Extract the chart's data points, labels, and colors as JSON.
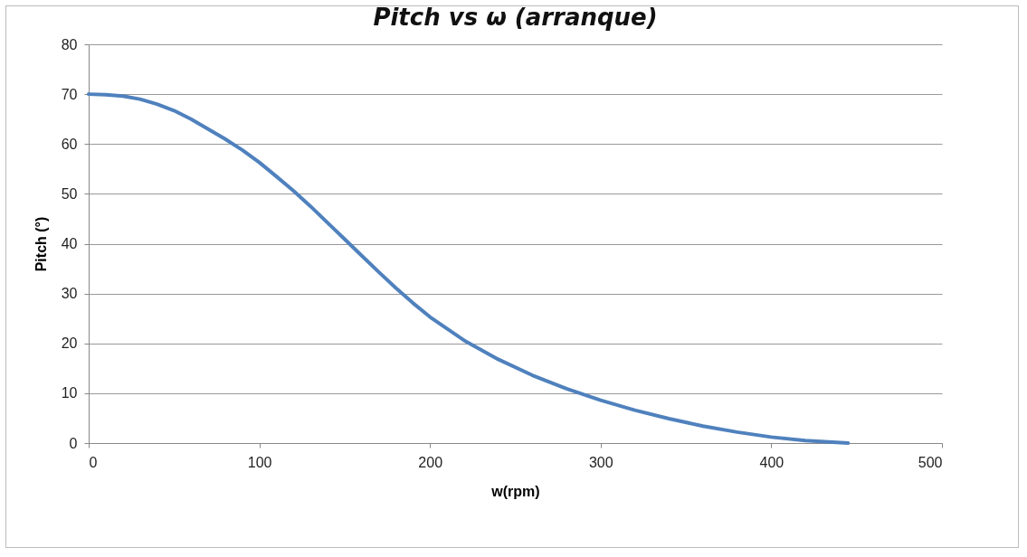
{
  "chart_data": {
    "type": "line",
    "title": "Pitch vs ω (arranque)",
    "xlabel": "w(rpm)",
    "ylabel": "Pitch (°)",
    "x": [
      0,
      10,
      20,
      30,
      40,
      50,
      60,
      70,
      80,
      90,
      100,
      110,
      120,
      130,
      140,
      150,
      160,
      170,
      180,
      190,
      200,
      220,
      240,
      260,
      280,
      300,
      320,
      340,
      360,
      380,
      400,
      420,
      445
    ],
    "series": [
      {
        "color": "#4f81bd",
        "values": [
          70,
          69.9,
          69.6,
          69,
          68,
          66.7,
          65,
          63,
          61,
          58.8,
          56.3,
          53.5,
          50.6,
          47.5,
          44.2,
          40.9,
          37.6,
          34.3,
          31.1,
          28.1,
          25.3,
          20.6,
          16.8,
          13.6,
          10.9,
          8.6,
          6.6,
          4.9,
          3.4,
          2.2,
          1.2,
          0.5,
          0
        ]
      }
    ],
    "xlim": [
      0,
      500
    ],
    "xticks": [
      0,
      100,
      200,
      300,
      400,
      500
    ],
    "ylim": [
      0,
      80
    ],
    "yticks": [
      0,
      10,
      20,
      30,
      40,
      50,
      60,
      70,
      80
    ],
    "grid": "y",
    "marker": "none",
    "line_style": "solid"
  }
}
